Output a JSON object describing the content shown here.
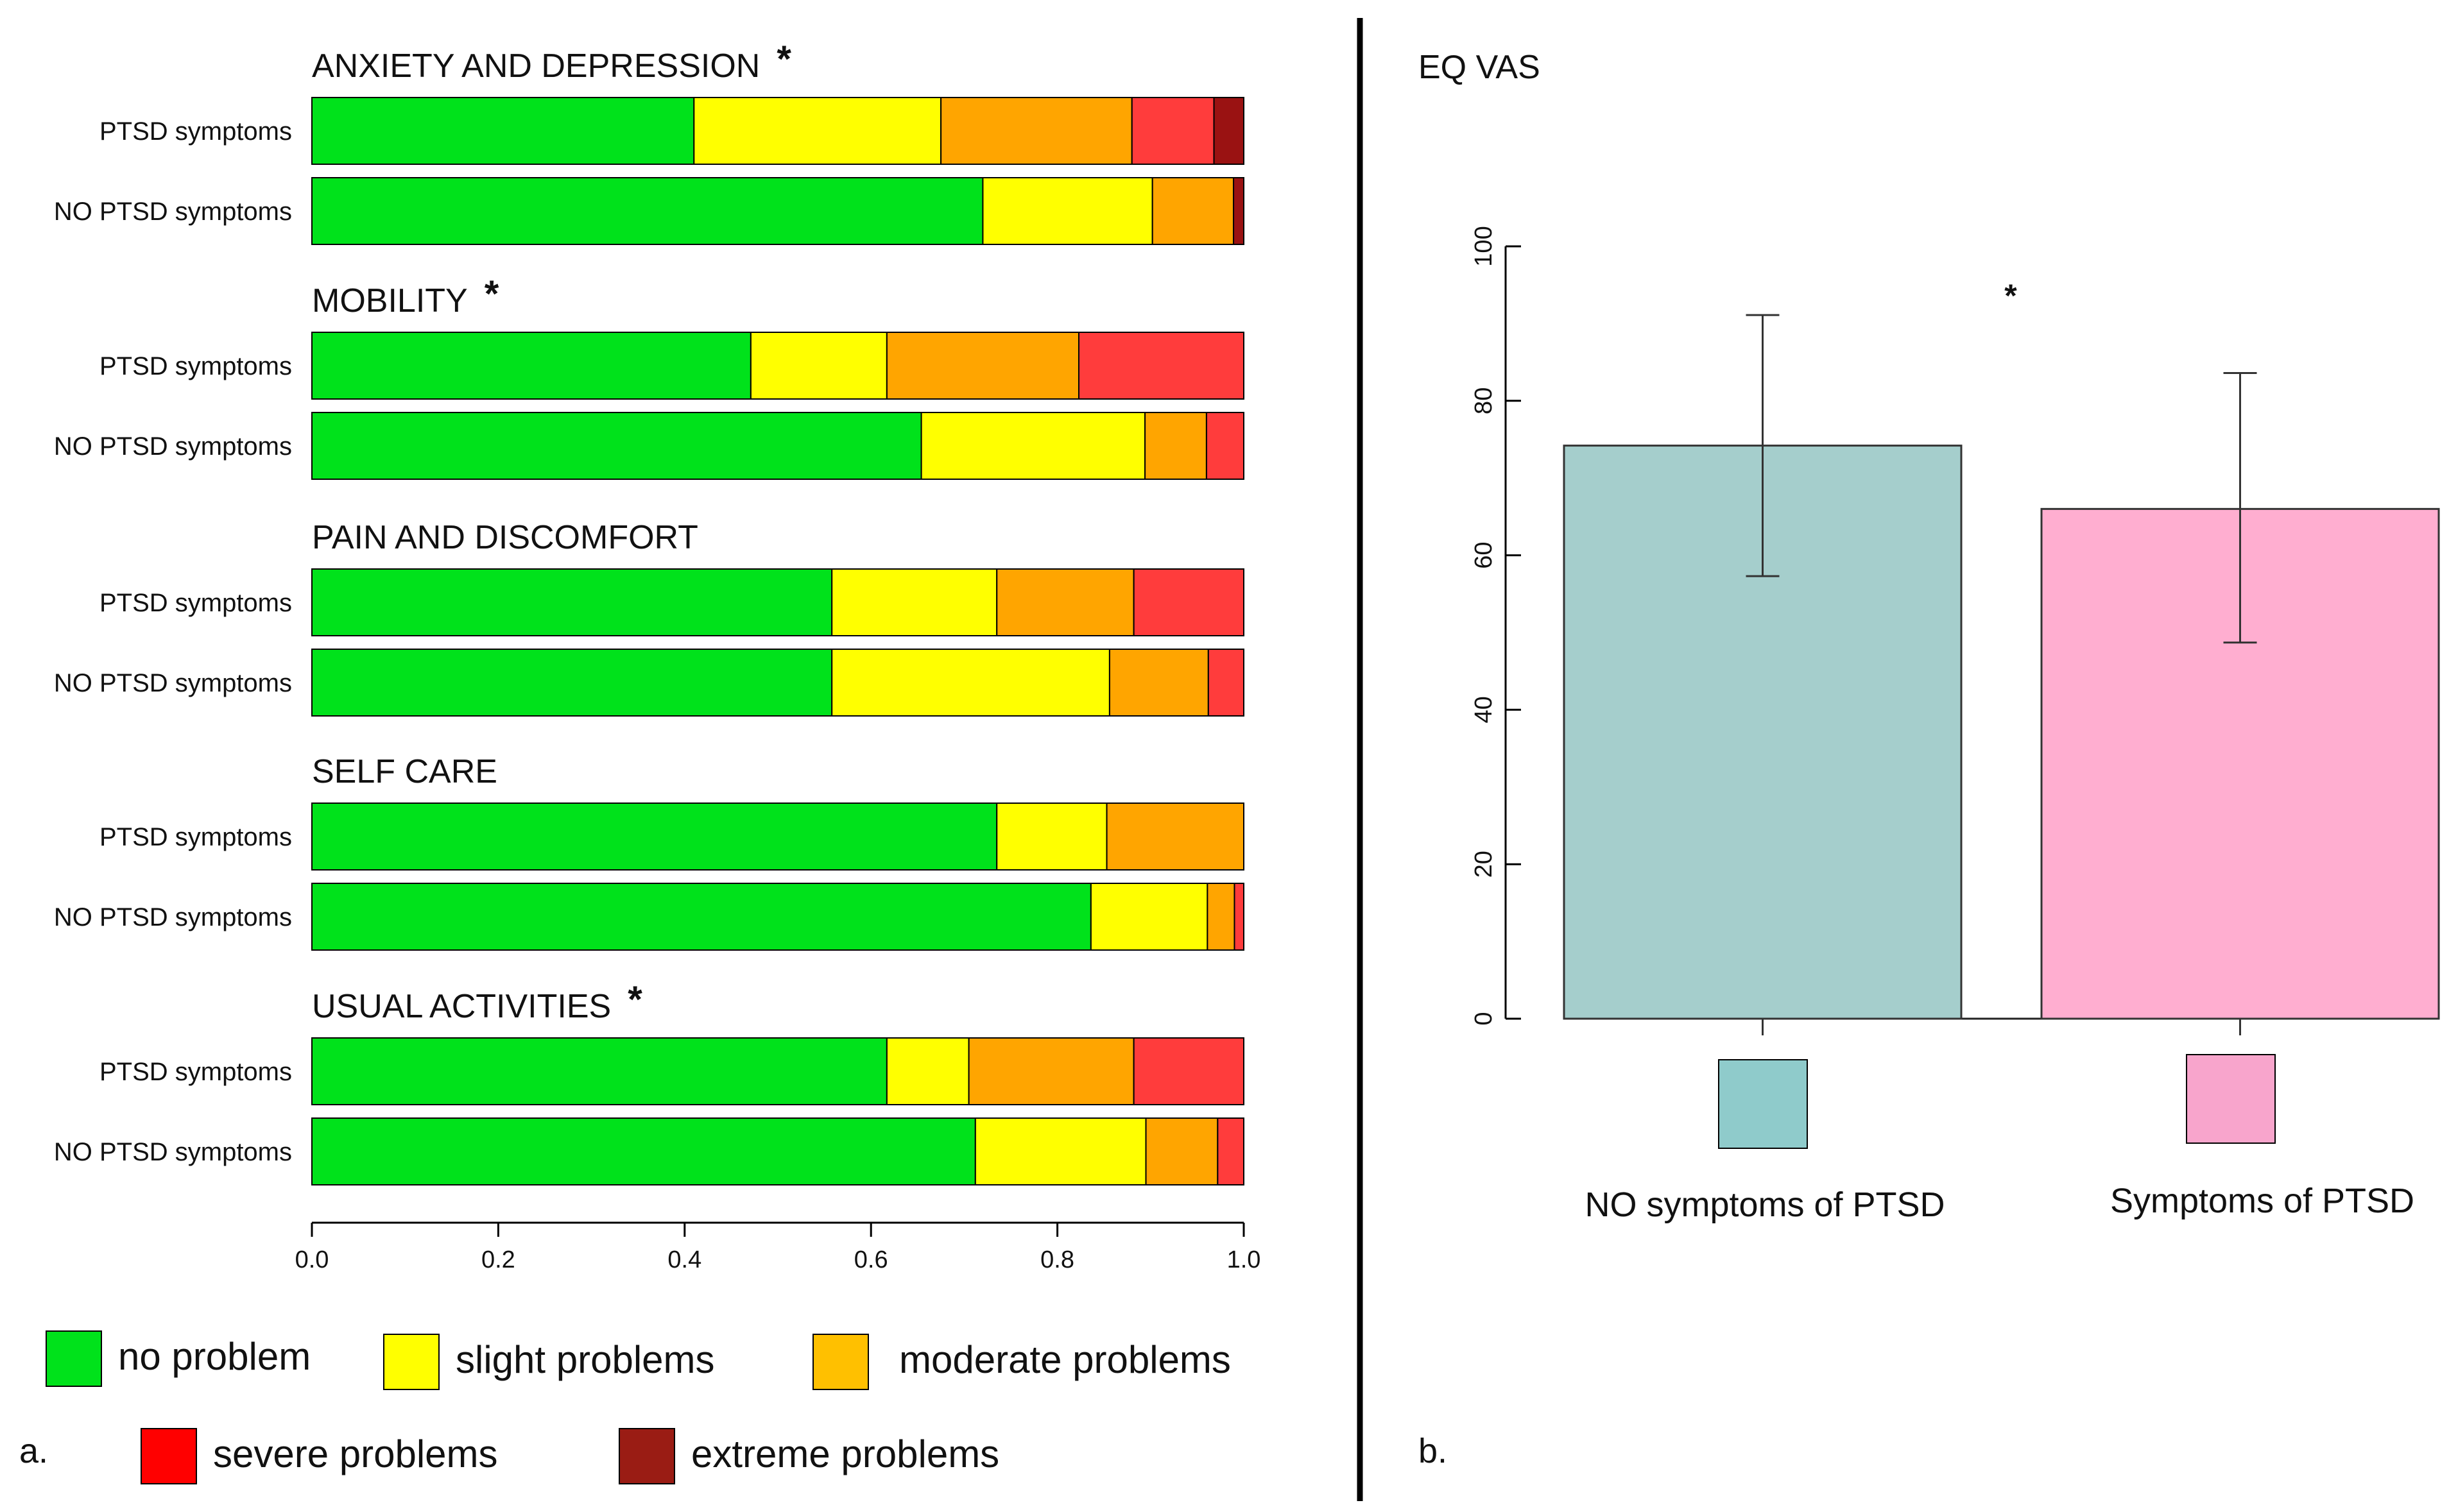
{
  "colors": {
    "no_problem": "#00e21b",
    "slight": "#ffff00",
    "moderate": "#ffa500",
    "severe": "#ff3c3c",
    "extreme": "#9a1212",
    "vas_no": "#a5cecc",
    "vas_yes": "#ffaed0",
    "swatch_no": "#8fcbcb",
    "swatch_yes": "#f8a5cc",
    "legend_no_problem": "#00e21b",
    "legend_slight": "#ffff00",
    "legend_moderate": "#ffc000",
    "legend_severe": "#ff0000",
    "legend_extreme": "#9a1c14"
  },
  "chart_data": [
    {
      "type": "bar",
      "orientation": "horizontal",
      "stacked": true,
      "panel_label": "a.",
      "xlim": [
        0,
        1
      ],
      "xticks": [
        "0.0",
        "0.2",
        "0.4",
        "0.6",
        "0.8",
        "1.0"
      ],
      "categories": [
        "no problem",
        "slight problems",
        "moderate problems",
        "severe problems",
        "extreme problems"
      ],
      "sections": [
        {
          "title": "ANXIETY AND DEPRESSION",
          "significance": "*",
          "rows": [
            {
              "label": "PTSD symptoms",
              "values": [
                0.41,
                0.265,
                0.205,
                0.088,
                0.032
              ]
            },
            {
              "label": "NO PTSD symptoms",
              "values": [
                0.72,
                0.182,
                0.087,
                0.0,
                0.011
              ]
            }
          ]
        },
        {
          "title": "MOBILITY",
          "significance": "*",
          "rows": [
            {
              "label": "PTSD symptoms",
              "values": [
                0.471,
                0.146,
                0.206,
                0.177,
                0.0
              ]
            },
            {
              "label": "NO PTSD symptoms",
              "values": [
                0.654,
                0.24,
                0.066,
                0.04,
                0.0
              ]
            }
          ]
        },
        {
          "title": "PAIN AND DISCOMFORT",
          "significance": "",
          "rows": [
            {
              "label": "PTSD symptoms",
              "values": [
                0.558,
                0.177,
                0.147,
                0.118,
                0.0
              ]
            },
            {
              "label": "NO PTSD symptoms",
              "values": [
                0.558,
                0.298,
                0.106,
                0.038,
                0.0
              ]
            }
          ]
        },
        {
          "title": "SELF CARE",
          "significance": "",
          "rows": [
            {
              "label": "PTSD symptoms",
              "values": [
                0.735,
                0.118,
                0.147,
                0.0,
                0.0
              ]
            },
            {
              "label": "NO PTSD symptoms",
              "values": [
                0.836,
                0.125,
                0.029,
                0.01,
                0.0
              ]
            }
          ]
        },
        {
          "title": "USUAL ACTIVITIES",
          "significance": "*",
          "rows": [
            {
              "label": "PTSD symptoms",
              "values": [
                0.617,
                0.088,
                0.177,
                0.118,
                0.0
              ]
            },
            {
              "label": "NO PTSD symptoms",
              "values": [
                0.712,
                0.183,
                0.077,
                0.028,
                0.0
              ]
            }
          ]
        }
      ],
      "legend": [
        {
          "label": "no problem",
          "color_key": "legend_no_problem"
        },
        {
          "label": "slight problems",
          "color_key": "legend_slight"
        },
        {
          "label": "moderate problems",
          "color_key": "legend_moderate"
        },
        {
          "label": "severe problems",
          "color_key": "legend_severe"
        },
        {
          "label": "extreme problems",
          "color_key": "legend_extreme"
        }
      ]
    },
    {
      "type": "bar",
      "orientation": "vertical",
      "panel_label": "b.",
      "title": "EQ VAS",
      "ylim": [
        0,
        100
      ],
      "yticks": [
        "0",
        "20",
        "40",
        "60",
        "80",
        "100"
      ],
      "significance": "*",
      "categories": [
        "NO symptoms of PTSD",
        "Symptoms of PTSD"
      ],
      "values": [
        74.2,
        66.0
      ],
      "error_low": [
        57.3,
        48.7
      ],
      "error_high": [
        91.1,
        83.6
      ],
      "color_keys": [
        "vas_no",
        "vas_yes"
      ],
      "swatch_keys": [
        "swatch_no",
        "swatch_yes"
      ]
    }
  ]
}
